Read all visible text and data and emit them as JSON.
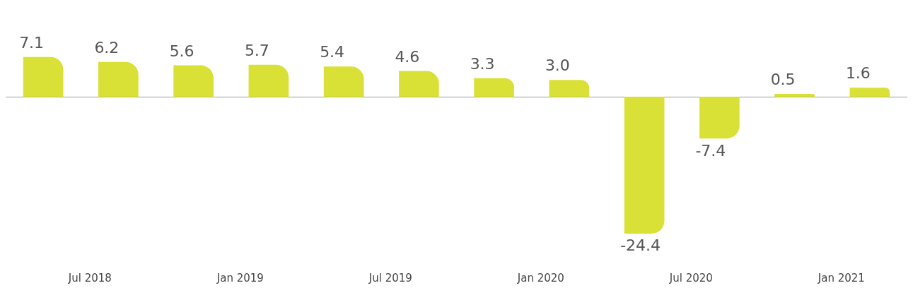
{
  "chart_data": {
    "type": "bar",
    "categories": [
      null,
      "Jul 2018",
      null,
      "Jan 2019",
      null,
      "Jul 2019",
      null,
      "Jan 2020",
      null,
      "Jul 2020",
      null,
      "Jan 2021"
    ],
    "values": [
      7.1,
      6.2,
      5.6,
      5.7,
      5.4,
      4.6,
      3.3,
      3.0,
      -24.4,
      -7.4,
      0.5,
      1.6
    ],
    "value_labels": [
      "7.1",
      "6.2",
      "5.6",
      "5.7",
      "5.4",
      "4.6",
      "3.3",
      "3.0",
      "-24.4",
      "-7.4",
      "0.5",
      "1.6"
    ],
    "color": "#d9e137",
    "tick_labels": "x",
    "grid": false,
    "legend": false
  }
}
